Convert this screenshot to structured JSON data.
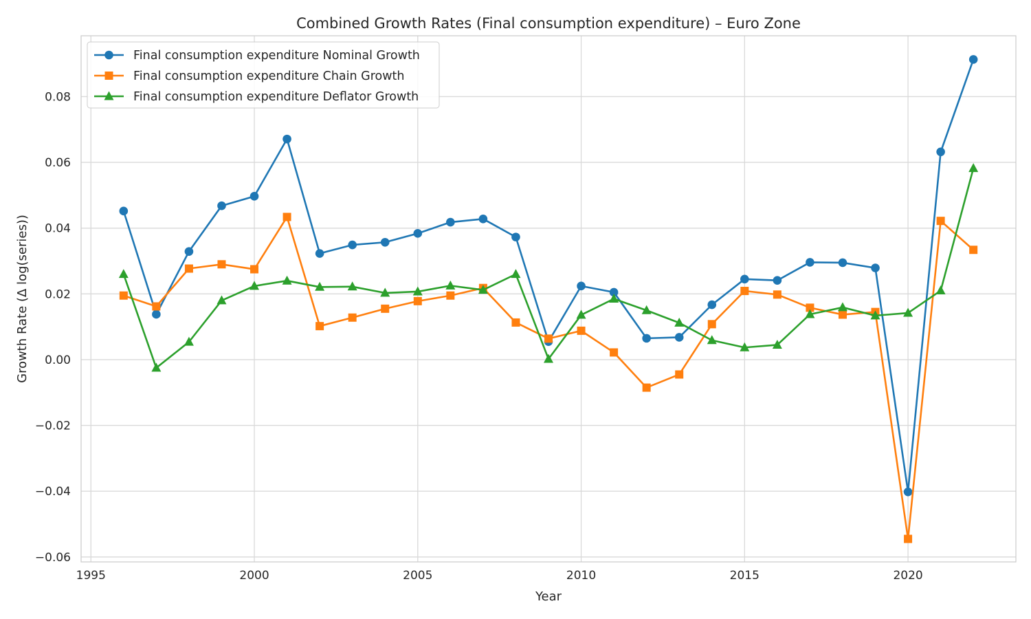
{
  "chart_data": {
    "type": "line",
    "title": "Combined Growth Rates (Final consumption expenditure) – Euro Zone",
    "xlabel": "Year",
    "ylabel": "Growth Rate (Δ log(series))",
    "xlim": [
      1994.7,
      2023.3
    ],
    "ylim": [
      -0.0615,
      0.0985
    ],
    "xticks": [
      1995,
      2000,
      2005,
      2010,
      2015,
      2020
    ],
    "xtick_labels": [
      "1995",
      "2000",
      "2005",
      "2010",
      "2015",
      "2020"
    ],
    "yticks": [
      -0.06,
      -0.04,
      -0.02,
      0.0,
      0.02,
      0.04,
      0.06,
      0.08
    ],
    "ytick_labels": [
      "−0.06",
      "−0.04",
      "−0.02",
      "0.00",
      "0.02",
      "0.04",
      "0.06",
      "0.08"
    ],
    "grid": true,
    "legend_position": "top-left",
    "x": [
      1996,
      1997,
      1998,
      1999,
      2000,
      2001,
      2002,
      2003,
      2004,
      2005,
      2006,
      2007,
      2008,
      2009,
      2010,
      2011,
      2012,
      2013,
      2014,
      2015,
      2016,
      2017,
      2018,
      2019,
      2020,
      2021,
      2022
    ],
    "series": [
      {
        "name": "Final consumption expenditure Nominal Growth",
        "color": "#1f77b4",
        "marker": "circle",
        "values": [
          0.0452,
          0.0138,
          0.0329,
          0.0468,
          0.0497,
          0.0671,
          0.0323,
          0.0349,
          0.0357,
          0.0384,
          0.0418,
          0.0428,
          0.0373,
          0.0055,
          0.0224,
          0.0205,
          0.0065,
          0.0068,
          0.0167,
          0.0245,
          0.0241,
          0.0296,
          0.0295,
          0.0279,
          -0.0402,
          0.0632,
          0.0913
        ]
      },
      {
        "name": "Final consumption expenditure Chain Growth",
        "color": "#ff7f0e",
        "marker": "square",
        "values": [
          0.0195,
          0.0162,
          0.0277,
          0.029,
          0.0275,
          0.0434,
          0.0102,
          0.0128,
          0.0155,
          0.0178,
          0.0195,
          0.0218,
          0.0113,
          0.0064,
          0.0088,
          0.0022,
          -0.0085,
          -0.0045,
          0.0108,
          0.0209,
          0.0198,
          0.0158,
          0.0137,
          0.0145,
          -0.0545,
          0.0422,
          0.0334
        ]
      },
      {
        "name": "Final consumption expenditure Deflator Growth",
        "color": "#2ca02c",
        "marker": "triangle",
        "values": [
          0.026,
          -0.0025,
          0.0054,
          0.018,
          0.0224,
          0.024,
          0.0221,
          0.0222,
          0.0203,
          0.0207,
          0.0225,
          0.0212,
          0.026,
          0.0002,
          0.0136,
          0.0185,
          0.015,
          0.0112,
          0.0059,
          0.0037,
          0.0045,
          0.0138,
          0.0159,
          0.0134,
          0.0142,
          0.021,
          0.0582
        ]
      }
    ]
  }
}
